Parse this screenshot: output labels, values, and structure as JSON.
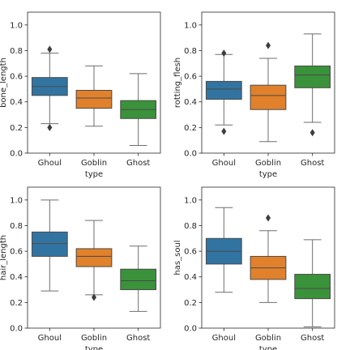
{
  "chart_data": [
    {
      "type": "box",
      "categories": [
        "Ghoul",
        "Goblin",
        "Ghost"
      ],
      "colors": [
        "#3274a1",
        "#e1812c",
        "#3a923a"
      ],
      "xlabel": "type",
      "ylabel": "bone_length",
      "ylim": [
        0.0,
        1.1
      ],
      "yticks": [
        "0.0",
        "0.2",
        "0.4",
        "0.6",
        "0.8",
        "1.0"
      ],
      "boxes": [
        {
          "category": "Ghoul",
          "whisker_low": 0.23,
          "q1": 0.45,
          "median": 0.52,
          "q3": 0.59,
          "whisker_high": 0.78,
          "outliers": [
            0.81,
            0.2
          ]
        },
        {
          "category": "Goblin",
          "whisker_low": 0.21,
          "q1": 0.35,
          "median": 0.43,
          "q3": 0.49,
          "whisker_high": 0.68,
          "outliers": []
        },
        {
          "category": "Ghost",
          "whisker_low": 0.06,
          "q1": 0.27,
          "median": 0.34,
          "q3": 0.41,
          "whisker_high": 0.62,
          "outliers": []
        }
      ]
    },
    {
      "type": "box",
      "categories": [
        "Ghoul",
        "Goblin",
        "Ghost"
      ],
      "colors": [
        "#3274a1",
        "#e1812c",
        "#3a923a"
      ],
      "xlabel": "type",
      "ylabel": "rotting_flesh",
      "ylim": [
        0.0,
        1.1
      ],
      "yticks": [
        "0.0",
        "0.2",
        "0.4",
        "0.6",
        "0.8",
        "1.0"
      ],
      "boxes": [
        {
          "category": "Ghoul",
          "whisker_low": 0.22,
          "q1": 0.42,
          "median": 0.5,
          "q3": 0.56,
          "whisker_high": 0.77,
          "outliers": [
            0.78,
            0.17
          ]
        },
        {
          "category": "Goblin",
          "whisker_low": 0.09,
          "q1": 0.34,
          "median": 0.45,
          "q3": 0.53,
          "whisker_high": 0.74,
          "outliers": [
            0.84
          ]
        },
        {
          "category": "Ghost",
          "whisker_low": 0.24,
          "q1": 0.51,
          "median": 0.61,
          "q3": 0.68,
          "whisker_high": 0.93,
          "outliers": [
            0.16
          ]
        }
      ]
    },
    {
      "type": "box",
      "categories": [
        "Ghoul",
        "Goblin",
        "Ghost"
      ],
      "colors": [
        "#3274a1",
        "#e1812c",
        "#3a923a"
      ],
      "xlabel": "type",
      "ylabel": "hair_length",
      "ylim": [
        0.0,
        1.1
      ],
      "yticks": [
        "0.0",
        "0.2",
        "0.4",
        "0.6",
        "0.8",
        "1.0"
      ],
      "boxes": [
        {
          "category": "Ghoul",
          "whisker_low": 0.29,
          "q1": 0.56,
          "median": 0.66,
          "q3": 0.75,
          "whisker_high": 1.0,
          "outliers": []
        },
        {
          "category": "Goblin",
          "whisker_low": 0.26,
          "q1": 0.48,
          "median": 0.56,
          "q3": 0.62,
          "whisker_high": 0.84,
          "outliers": [
            0.24
          ]
        },
        {
          "category": "Ghost",
          "whisker_low": 0.13,
          "q1": 0.3,
          "median": 0.37,
          "q3": 0.46,
          "whisker_high": 0.64,
          "outliers": []
        }
      ]
    },
    {
      "type": "box",
      "categories": [
        "Ghoul",
        "Goblin",
        "Ghost"
      ],
      "colors": [
        "#3274a1",
        "#e1812c",
        "#3a923a"
      ],
      "xlabel": "type",
      "ylabel": "has_soul",
      "ylim": [
        0.0,
        1.1
      ],
      "yticks": [
        "0.0",
        "0.2",
        "0.4",
        "0.6",
        "0.8",
        "1.0"
      ],
      "boxes": [
        {
          "category": "Ghoul",
          "whisker_low": 0.28,
          "q1": 0.5,
          "median": 0.6,
          "q3": 0.7,
          "whisker_high": 0.94,
          "outliers": []
        },
        {
          "category": "Goblin",
          "whisker_low": 0.2,
          "q1": 0.38,
          "median": 0.47,
          "q3": 0.56,
          "whisker_high": 0.76,
          "outliers": [
            0.86
          ]
        },
        {
          "category": "Ghost",
          "whisker_low": 0.01,
          "q1": 0.23,
          "median": 0.31,
          "q3": 0.42,
          "whisker_high": 0.69,
          "outliers": []
        }
      ]
    }
  ]
}
